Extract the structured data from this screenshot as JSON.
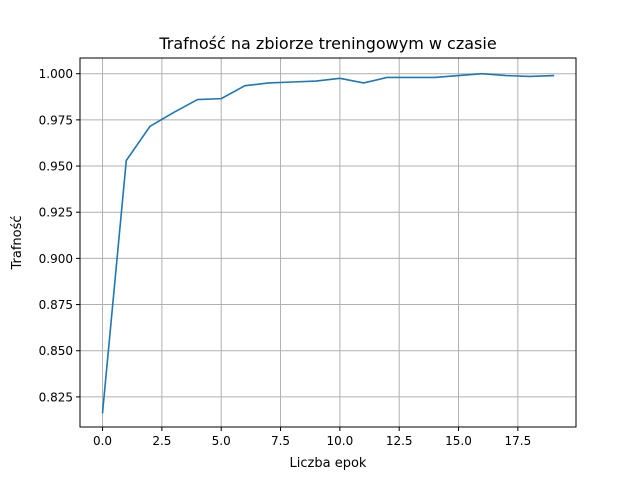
{
  "chart_data": {
    "type": "line",
    "title": "Trafność na zbiorze treningowym w czasie",
    "xlabel": "Liczba epok",
    "ylabel": "Trafność",
    "xlim": [
      -0.95,
      19.95
    ],
    "ylim": [
      0.8087,
      1.0085
    ],
    "xticks": [
      0.0,
      2.5,
      5.0,
      7.5,
      10.0,
      12.5,
      15.0,
      17.5
    ],
    "xtick_labels": [
      "0.0",
      "2.5",
      "5.0",
      "7.5",
      "10.0",
      "12.5",
      "15.0",
      "17.5"
    ],
    "yticks": [
      0.825,
      0.85,
      0.875,
      0.9,
      0.925,
      0.95,
      0.975,
      1.0
    ],
    "ytick_labels": [
      "0.825",
      "0.850",
      "0.875",
      "0.900",
      "0.925",
      "0.950",
      "0.975",
      "1.000"
    ],
    "grid": true,
    "series": [
      {
        "color": "#1f77b4",
        "x": [
          0,
          1,
          2,
          3,
          4,
          5,
          6,
          7,
          8,
          9,
          10,
          11,
          12,
          13,
          14,
          15,
          16,
          17,
          18,
          19
        ],
        "y": [
          0.8165,
          0.953,
          0.9715,
          0.979,
          0.986,
          0.9865,
          0.9935,
          0.995,
          0.9955,
          0.996,
          0.9975,
          0.995,
          0.998,
          0.998,
          0.998,
          0.999,
          1.0,
          0.999,
          0.9985,
          0.999
        ]
      }
    ]
  }
}
